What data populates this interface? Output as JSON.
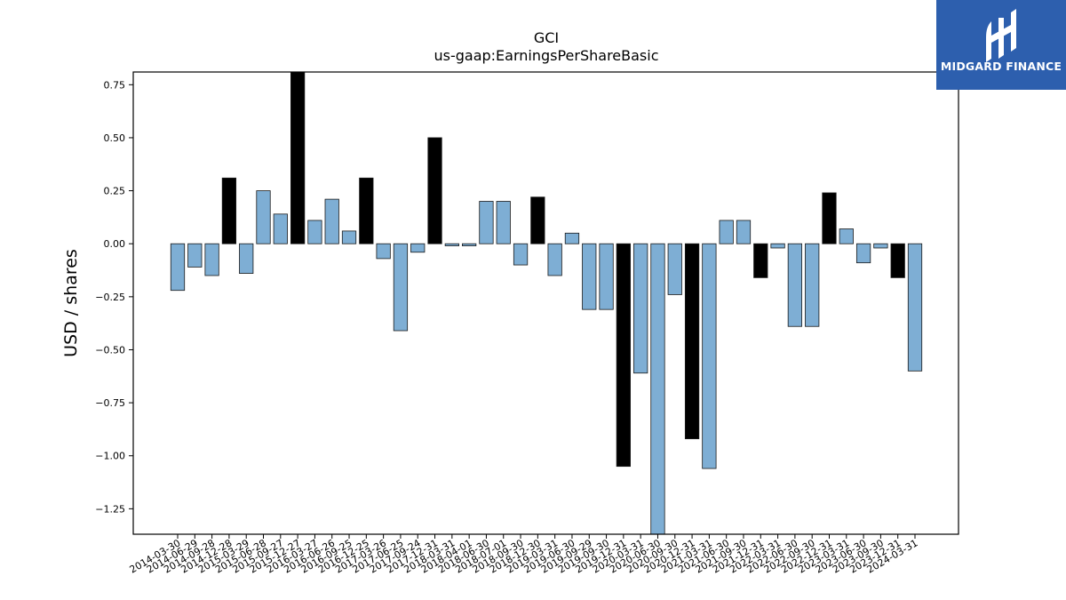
{
  "chart_data": {
    "type": "bar",
    "title": "GCI",
    "subtitle": "us-gaap:EarningsPerShareBasic",
    "xlabel": "",
    "ylabel": "USD / shares",
    "ylim": [
      -1.37,
      0.81
    ],
    "yticks": [
      0.75,
      0.5,
      0.25,
      0.0,
      -0.25,
      -0.5,
      -0.75,
      -1.0,
      -1.25
    ],
    "ytick_labels": [
      "0.75",
      "0.50",
      "0.25",
      "0.00",
      "−0.25",
      "−0.50",
      "−0.75",
      "−1.00",
      "−1.25"
    ],
    "grid": false,
    "legend": "none",
    "colors": {
      "quarterly": "#7eaed4",
      "annual": "#000000",
      "edge": "#1a1a1a",
      "axis": "#000000"
    },
    "bars": [
      {
        "date": "2014-03-30",
        "value": -0.22,
        "annual": false
      },
      {
        "date": "2014-06-29",
        "value": -0.11,
        "annual": false
      },
      {
        "date": "2014-09-28",
        "value": -0.15,
        "annual": false
      },
      {
        "date": "2014-12-28",
        "value": 0.31,
        "annual": true
      },
      {
        "date": "2015-03-29",
        "value": -0.14,
        "annual": false
      },
      {
        "date": "2015-06-28",
        "value": 0.25,
        "annual": false
      },
      {
        "date": "2015-09-27",
        "value": 0.14,
        "annual": false
      },
      {
        "date": "2015-12-27",
        "value": 0.81,
        "annual": true
      },
      {
        "date": "2016-03-27",
        "value": 0.11,
        "annual": false
      },
      {
        "date": "2016-06-26",
        "value": 0.21,
        "annual": false
      },
      {
        "date": "2016-09-25",
        "value": 0.06,
        "annual": false
      },
      {
        "date": "2016-12-25",
        "value": 0.31,
        "annual": true
      },
      {
        "date": "2017-03-26",
        "value": -0.07,
        "annual": false
      },
      {
        "date": "2017-06-25",
        "value": -0.41,
        "annual": false
      },
      {
        "date": "2017-09-24",
        "value": -0.04,
        "annual": false
      },
      {
        "date": "2017-12-31",
        "value": 0.5,
        "annual": true
      },
      {
        "date": "2018-03-31",
        "value": -0.01,
        "annual": false
      },
      {
        "date": "2018-04-01",
        "value": -0.01,
        "annual": false
      },
      {
        "date": "2018-06-30",
        "value": 0.2,
        "annual": false
      },
      {
        "date": "2018-07-01",
        "value": 0.2,
        "annual": false
      },
      {
        "date": "2018-09-30",
        "value": -0.1,
        "annual": false
      },
      {
        "date": "2018-12-30",
        "value": 0.22,
        "annual": true
      },
      {
        "date": "2019-03-31",
        "value": -0.15,
        "annual": false
      },
      {
        "date": "2019-06-30",
        "value": 0.05,
        "annual": false
      },
      {
        "date": "2019-09-29",
        "value": -0.31,
        "annual": false
      },
      {
        "date": "2019-09-30",
        "value": -0.31,
        "annual": false
      },
      {
        "date": "2019-12-31",
        "value": -1.05,
        "annual": true
      },
      {
        "date": "2020-03-31",
        "value": -0.61,
        "annual": false
      },
      {
        "date": "2020-06-30",
        "value": -1.37,
        "annual": false
      },
      {
        "date": "2020-09-30",
        "value": -0.24,
        "annual": false
      },
      {
        "date": "2020-12-31",
        "value": -0.92,
        "annual": true
      },
      {
        "date": "2021-03-31",
        "value": -1.06,
        "annual": false
      },
      {
        "date": "2021-06-30",
        "value": 0.11,
        "annual": false
      },
      {
        "date": "2021-09-30",
        "value": 0.11,
        "annual": false
      },
      {
        "date": "2021-12-31",
        "value": -0.16,
        "annual": true
      },
      {
        "date": "2022-03-31",
        "value": -0.02,
        "annual": false
      },
      {
        "date": "2022-06-30",
        "value": -0.39,
        "annual": false
      },
      {
        "date": "2022-09-30",
        "value": -0.39,
        "annual": false
      },
      {
        "date": "2022-12-31",
        "value": 0.24,
        "annual": true
      },
      {
        "date": "2023-03-31",
        "value": 0.07,
        "annual": false
      },
      {
        "date": "2023-06-30",
        "value": -0.09,
        "annual": false
      },
      {
        "date": "2023-09-30",
        "value": -0.02,
        "annual": false
      },
      {
        "date": "2023-12-31",
        "value": -0.16,
        "annual": true
      },
      {
        "date": "2024-03-31",
        "value": -0.6,
        "annual": false
      }
    ]
  },
  "logo": {
    "text": "MIDGARD FINANCE",
    "color": "#2d5fae"
  }
}
